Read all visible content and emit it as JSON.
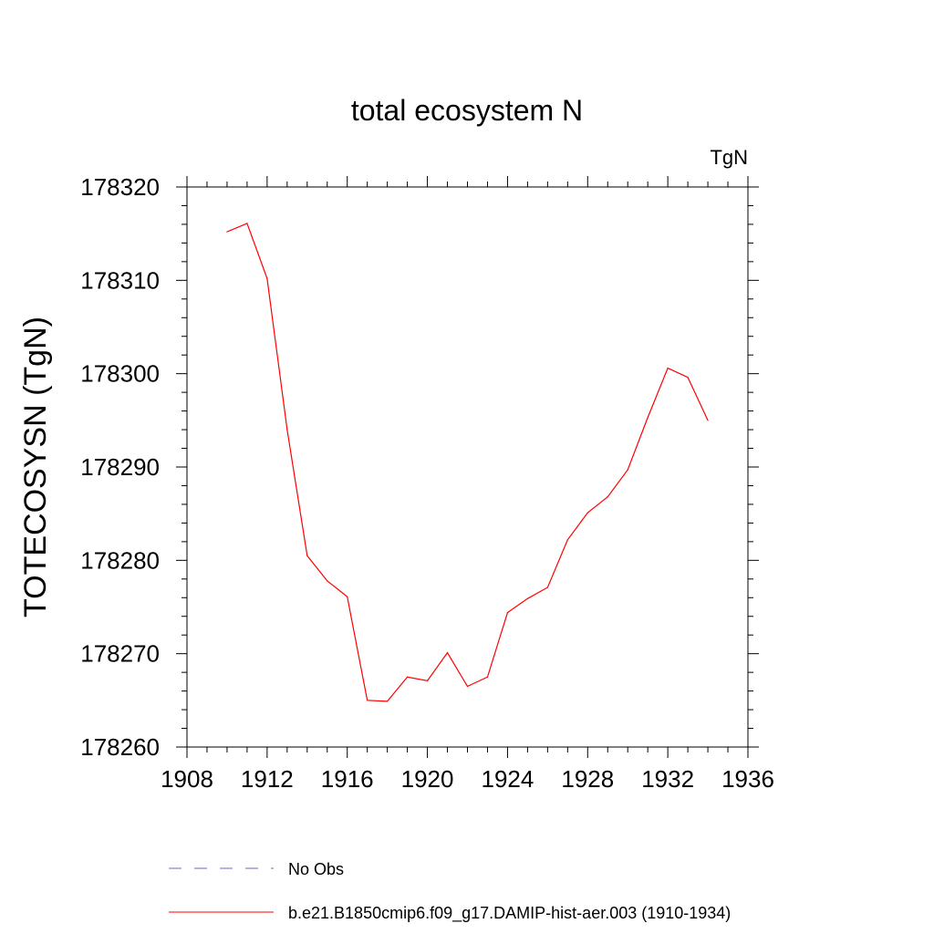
{
  "chart_data": {
    "type": "line",
    "title": "total ecosystem N",
    "units_label": "TgN",
    "ylabel": "TOTECOSYSN  (TgN)",
    "xlabel": "",
    "xlim": [
      1908,
      1936
    ],
    "ylim": [
      178260,
      178320
    ],
    "xticks": [
      "1908",
      "1912",
      "1916",
      "1920",
      "1924",
      "1928",
      "1932",
      "1936"
    ],
    "yticks": [
      "178260",
      "178270",
      "178280",
      "178290",
      "178300",
      "178310",
      "178320"
    ],
    "grid": false,
    "legend_position": "bottom",
    "series": [
      {
        "name": "No Obs",
        "color": "#6b6bc7",
        "style": "dashed",
        "x": [],
        "values": []
      },
      {
        "name": "b.e21.B1850cmip6.f09_g17.DAMIP-hist-aer.003 (1910-1934)",
        "color": "#ff0000",
        "style": "solid",
        "x": [
          1910,
          1911,
          1912,
          1913,
          1914,
          1915,
          1916,
          1917,
          1918,
          1919,
          1920,
          1921,
          1922,
          1923,
          1924,
          1925,
          1926,
          1927,
          1928,
          1929,
          1930,
          1931,
          1932,
          1933,
          1934
        ],
        "values": [
          178315.2,
          178316.1,
          178310.2,
          178294.0,
          178280.5,
          178277.8,
          178276.1,
          178265.0,
          178264.9,
          178267.5,
          178267.1,
          178270.1,
          178266.5,
          178267.5,
          178274.4,
          178275.9,
          178277.1,
          178282.2,
          178285.1,
          178286.8,
          178289.7,
          178295.3,
          178300.6,
          178299.6,
          178295.0
        ]
      }
    ]
  }
}
